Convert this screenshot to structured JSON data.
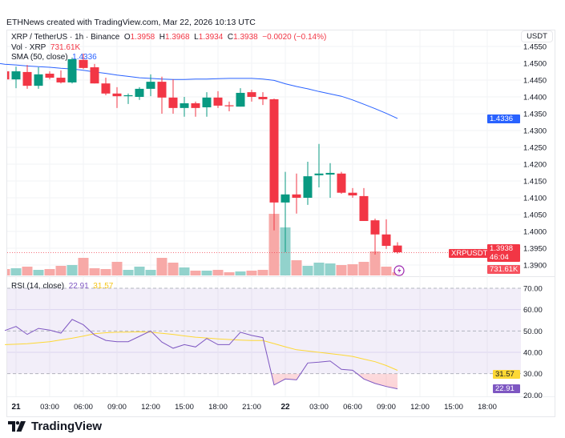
{
  "credit": "ETHNews created with TradingView.com, Mar 22, 2026 10:13 UTC",
  "legend": {
    "symbol": "XRP / TetherUS · 1h · Binance",
    "o_label": "O",
    "o": "1.3958",
    "h_label": "H",
    "h": "1.3968",
    "l_label": "L",
    "l": "1.3934",
    "c_label": "C",
    "c": "1.3938",
    "change": "−0.0020 (−0.14%)",
    "vol_label": "Vol · XRP",
    "vol": "731.61K",
    "sma_label": "SMA (50, close)",
    "sma": "1.4336",
    "rsi_label": "RSI (14, close)",
    "rsi": "22.91",
    "rsi_ma": "31.57"
  },
  "axis": {
    "currency": "USDT",
    "sma_tag": "1.4336",
    "symbol_tag": "XRPUSDT",
    "price_tag": "1.3938",
    "countdown": "46:04",
    "vol_tag": "731.61K",
    "rsi_ma_tag": "31.57",
    "rsi_tag": "22.91"
  },
  "logo": "TradingView",
  "colors": {
    "up": "#089981",
    "down": "#f23645",
    "sma": "#2962ff",
    "rsi": "#7e57c2",
    "rsi_ma": "#fdd835"
  },
  "chart_data": {
    "type": "candlestick",
    "title": "XRP / TetherUS · 1h · Binance",
    "price_ticks": [
      "1.4550",
      "1.4500",
      "1.4450",
      "1.4400",
      "1.4350",
      "1.4300",
      "1.4250",
      "1.4200",
      "1.4150",
      "1.4100",
      "1.4050",
      "1.4000",
      "1.3950",
      "1.3900"
    ],
    "price_range": [
      1.389,
      1.4555
    ],
    "rsi_ticks": [
      "70.00",
      "60.00",
      "50.00",
      "40.00",
      "30.00",
      "20.00"
    ],
    "time_ticks": [
      "21",
      "03:00",
      "06:00",
      "09:00",
      "12:00",
      "15:00",
      "18:00",
      "21:00",
      "22",
      "03:00",
      "06:00",
      "09:00",
      "12:00",
      "15:00",
      "18:00"
    ],
    "candles": [
      [
        1.4476,
        1.4483,
        1.445,
        1.4452
      ],
      [
        1.4452,
        1.449,
        1.4426,
        1.4476
      ],
      [
        1.4474,
        1.4495,
        1.4424,
        1.4433
      ],
      [
        1.4433,
        1.4488,
        1.4424,
        1.4467
      ],
      [
        1.4469,
        1.4476,
        1.4452,
        1.4457
      ],
      [
        1.4457,
        1.4479,
        1.444,
        1.4443
      ],
      [
        1.4443,
        1.4517,
        1.444,
        1.4512
      ],
      [
        1.451,
        1.4529,
        1.4483,
        1.4486
      ],
      [
        1.4488,
        1.4498,
        1.444,
        1.444
      ],
      [
        1.444,
        1.4457,
        1.4405,
        1.441
      ],
      [
        1.441,
        1.4429,
        1.4367,
        1.4402
      ],
      [
        1.4402,
        1.441,
        1.4379,
        1.4405
      ],
      [
        1.44,
        1.4429,
        1.4391,
        1.4424
      ],
      [
        1.4424,
        1.4467,
        1.4402,
        1.4445
      ],
      [
        1.4445,
        1.446,
        1.435,
        1.4398
      ],
      [
        1.4398,
        1.4452,
        1.435,
        1.4367
      ],
      [
        1.4367,
        1.44,
        1.4341,
        1.4381
      ],
      [
        1.4381,
        1.4386,
        1.4341,
        1.4367
      ],
      [
        1.4369,
        1.4414,
        1.4341,
        1.4398
      ],
      [
        1.4398,
        1.4417,
        1.4367,
        1.4374
      ],
      [
        1.4375,
        1.4386,
        1.4357,
        1.4374
      ],
      [
        1.4371,
        1.4426,
        1.4371,
        1.4412
      ],
      [
        1.4414,
        1.4421,
        1.4386,
        1.44
      ],
      [
        1.44,
        1.4414,
        1.4376,
        1.4393
      ],
      [
        1.4393,
        1.4395,
        1.4003,
        1.4086
      ],
      [
        1.4086,
        1.4177,
        1.3938,
        1.411
      ],
      [
        1.411,
        1.4172,
        1.4053,
        1.41
      ],
      [
        1.41,
        1.4207,
        1.4079,
        1.4164
      ],
      [
        1.4167,
        1.426,
        1.4131,
        1.4172
      ],
      [
        1.4169,
        1.4203,
        1.41,
        1.4174
      ],
      [
        1.4172,
        1.4177,
        1.4112,
        1.4115
      ],
      [
        1.4115,
        1.4129,
        1.41,
        1.4107
      ],
      [
        1.4105,
        1.4129,
        1.4031,
        1.4031
      ],
      [
        1.4033,
        1.4038,
        1.3931,
        1.3991
      ],
      [
        1.3991,
        1.4036,
        1.3948,
        1.3957
      ],
      [
        1.3958,
        1.3968,
        1.3934,
        1.3938
      ]
    ],
    "volume_k": [
      1464,
      1647,
      2013,
      1281,
      1464,
      2196,
      2379,
      4026,
      1647,
      1464,
      3111,
      1281,
      2013,
      1281,
      4026,
      2928,
      1830,
      1098,
      1098,
      1281,
      732,
      915,
      1098,
      1281,
      14091,
      10980,
      3477,
      2196,
      2928,
      2745,
      2379,
      2562,
      3111,
      5490,
      2013,
      732
    ],
    "sma50": [
      1.4497,
      1.4495,
      1.4492,
      1.449,
      1.4488,
      1.4485,
      1.4483,
      1.4479,
      1.4474,
      1.447,
      1.4465,
      1.4461,
      1.4457,
      1.4455,
      1.4453,
      1.4452,
      1.4452,
      1.4453,
      1.4453,
      1.4454,
      1.4455,
      1.4455,
      1.4455,
      1.4453,
      1.4449,
      1.4439,
      1.4431,
      1.4424,
      1.4416,
      1.4409,
      1.4402,
      1.4391,
      1.4378,
      1.4365,
      1.4351,
      1.4336
    ],
    "rsi": [
      50.2,
      52.1,
      48.4,
      51.2,
      50.4,
      49,
      55.4,
      52.9,
      48.1,
      45.6,
      45,
      45,
      47.5,
      50,
      44.8,
      41.9,
      43.6,
      42.5,
      46.5,
      43.6,
      43.6,
      49.4,
      47.9,
      46.9,
      24.7,
      27.5,
      27.1,
      35,
      35.4,
      35.9,
      32,
      31.6,
      27.5,
      25.4,
      24,
      22.91
    ],
    "rsi_ma": [
      43.6,
      43.8,
      44,
      44.5,
      45,
      45.8,
      46.6,
      47.6,
      48.7,
      49.2,
      49.4,
      49.5,
      49.6,
      49.4,
      48.9,
      48.4,
      47.7,
      47.1,
      46.7,
      46.3,
      46,
      45.7,
      45.5,
      45.5,
      44.1,
      42.6,
      41.2,
      40.6,
      40,
      39.4,
      38.8,
      38.1,
      36.8,
      35.6,
      33.8,
      31.57
    ],
    "rsi_bands": [
      70,
      50,
      30
    ],
    "rsi_range": [
      17,
      72
    ]
  }
}
